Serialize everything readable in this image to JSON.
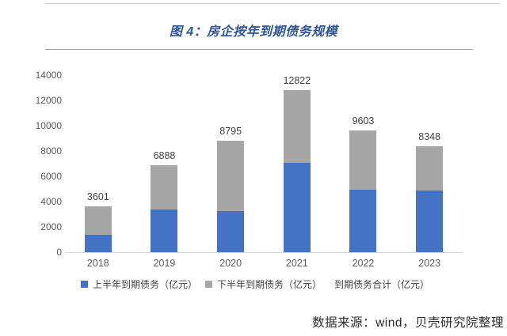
{
  "figure": {
    "title": "图 4：房企按年到期债务规模"
  },
  "chart_data": {
    "type": "bar",
    "stacked": true,
    "title": "图 4：房企按年到期债务规模",
    "categories": [
      "2018",
      "2019",
      "2020",
      "2021",
      "2022",
      "2023"
    ],
    "series": [
      {
        "name": "上半年到期债务（亿元）",
        "color": "#4472c4",
        "values": [
          1400,
          3350,
          3250,
          7050,
          4950,
          4850
        ]
      },
      {
        "name": "下半年到期债务（亿元）",
        "color": "#a6a6a6",
        "values": [
          2201,
          3538,
          5545,
          5772,
          4653,
          3498
        ]
      }
    ],
    "totals": {
      "name": "到期债务合计（亿元）",
      "values": [
        3601,
        6888,
        8795,
        12822,
        9603,
        8348
      ]
    },
    "ylim": [
      0,
      14000
    ],
    "ytick_step": 2000,
    "grid": false,
    "legend_position": "bottom",
    "value_labels": "totals shown above each stacked bar"
  },
  "legend": {
    "items": [
      {
        "label": "上半年到期债务（亿元）",
        "color": "#4472c4"
      },
      {
        "label": "下半年到期债务（亿元）",
        "color": "#a6a6a6"
      },
      {
        "label": "到期债务合计（亿元）",
        "color": "none"
      }
    ]
  },
  "source_note": "数据来源：wind，贝壳研究院整理",
  "colors": {
    "title": "#2f5597",
    "first_half_bar": "#4472c4",
    "second_half_bar": "#a6a6a6",
    "axis_text": "#595959",
    "data_label": "#404040",
    "axis_line": "#d6d6d6"
  }
}
